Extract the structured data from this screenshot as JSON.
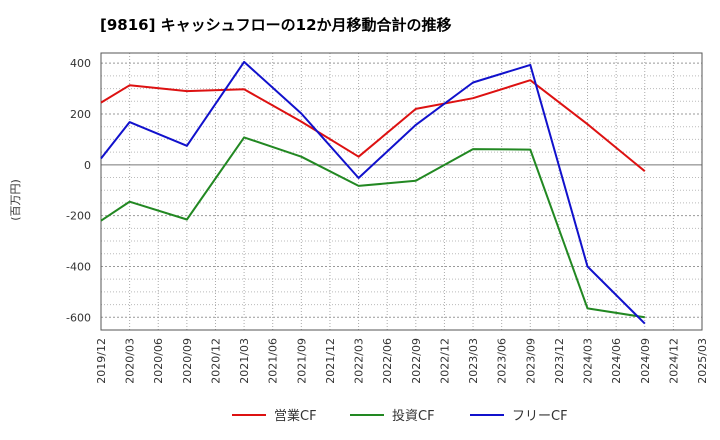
{
  "chart_data": {
    "type": "line",
    "title": "[9816]  キャッシュフローの12か月移動合計の推移",
    "ylabel": "(百万円)",
    "xlabel": "",
    "ylim": [
      -650,
      440
    ],
    "yticks": [
      400,
      200,
      0,
      -200,
      -400,
      -600
    ],
    "x": [
      "2019/12",
      "2020/03",
      "2020/06",
      "2020/09",
      "2020/12",
      "2021/03",
      "2021/06",
      "2021/09",
      "2021/12",
      "2022/03",
      "2022/06",
      "2022/09",
      "2022/12",
      "2023/03",
      "2023/06",
      "2023/09",
      "2023/12",
      "2024/03",
      "2024/06",
      "2024/09",
      "2024/12",
      "2025/03"
    ],
    "grid": true,
    "legend_position": "bottom",
    "series": [
      {
        "name": "営業CF",
        "color": "#dd1111",
        "values": [
          245,
          313,
          null,
          290,
          null,
          297,
          null,
          170,
          null,
          32,
          null,
          220,
          null,
          262,
          null,
          333,
          null,
          160,
          null,
          -25,
          null,
          null
        ]
      },
      {
        "name": "投資CF",
        "color": "#228822",
        "values": [
          -220,
          -145,
          null,
          -215,
          null,
          108,
          null,
          32,
          null,
          -83,
          null,
          -63,
          null,
          62,
          null,
          60,
          null,
          -565,
          null,
          -600,
          null,
          null
        ]
      },
      {
        "name": "フリーCF",
        "color": "#1111cc",
        "values": [
          25,
          168,
          null,
          75,
          null,
          405,
          null,
          202,
          null,
          -52,
          null,
          157,
          null,
          324,
          null,
          393,
          null,
          -400,
          null,
          -625,
          null,
          null
        ]
      }
    ]
  }
}
